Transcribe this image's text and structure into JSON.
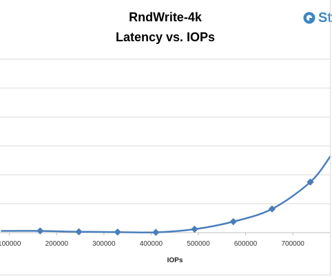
{
  "chart_data": {
    "type": "line",
    "title": "RndWrite-4k",
    "subtitle": "Latency vs. IOPs",
    "xlabel": "IOPs",
    "ylabel": "",
    "x_ticks": [
      "100000",
      "200000",
      "300000",
      "400000",
      "500000",
      "600000",
      "700000"
    ],
    "x_tick_values": [
      100000,
      200000,
      300000,
      400000,
      500000,
      600000,
      700000
    ],
    "xlim": [
      80000,
      780000
    ],
    "ylim": [
      0,
      8
    ],
    "y_gridlines": [
      0,
      1,
      2,
      3,
      4,
      5,
      6,
      7
    ],
    "grid": true,
    "legend": "none",
    "series": [
      {
        "color": "#4a7ebb",
        "marker": "diamond",
        "smooth": true,
        "x": [
          82000,
          165000,
          247000,
          329000,
          410000,
          492000,
          574000,
          656000,
          737000,
          780000
        ],
        "y": [
          0.06,
          0.06,
          0.03,
          0.02,
          0.01,
          0.12,
          0.38,
          0.82,
          1.75,
          2.65
        ]
      }
    ]
  },
  "logo": {
    "text": "St",
    "color": "#3e86c6"
  }
}
